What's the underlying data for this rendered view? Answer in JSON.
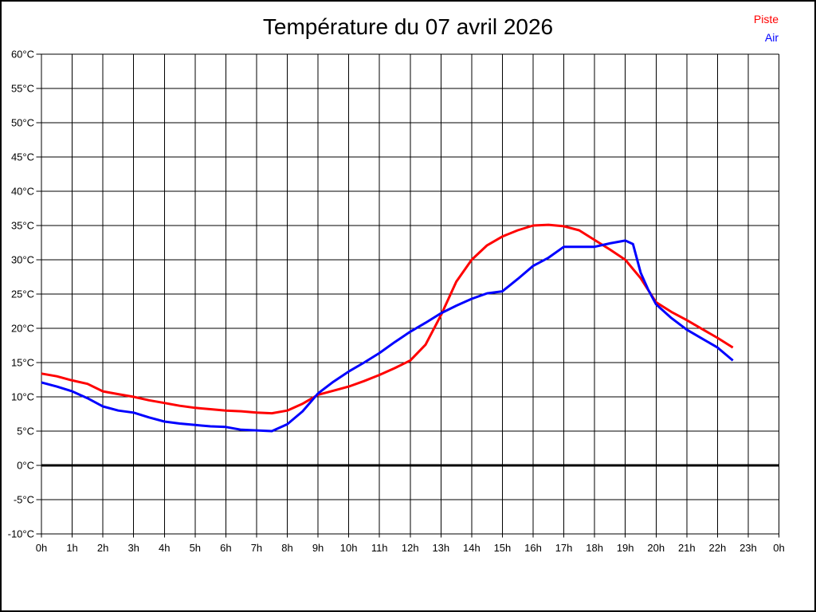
{
  "title": "Température du 07 avril 2026",
  "legend": {
    "piste_label": "Piste",
    "air_label": "Air"
  },
  "colors": {
    "piste": "#ff0000",
    "air": "#0000ff",
    "grid": "#000000",
    "zero_line": "#000000",
    "text": "#000000",
    "background": "#ffffff"
  },
  "chart_data": {
    "type": "line",
    "title": "Température du 07 avril 2026",
    "xlabel": "",
    "ylabel": "",
    "x_unit": "h",
    "y_unit": "°C",
    "xlim": [
      0,
      24
    ],
    "ylim": [
      -10,
      60
    ],
    "x_tick_step": 1,
    "y_tick_step": 5,
    "grid": true,
    "zero_line_emphasized": true,
    "legend_position": "top-right",
    "x_tick_labels": [
      "0h",
      "1h",
      "2h",
      "3h",
      "4h",
      "5h",
      "6h",
      "7h",
      "8h",
      "9h",
      "10h",
      "11h",
      "12h",
      "13h",
      "14h",
      "15h",
      "16h",
      "17h",
      "18h",
      "19h",
      "20h",
      "21h",
      "22h",
      "23h",
      "0h"
    ],
    "y_tick_labels": [
      "60°C",
      "55°C",
      "50°C",
      "45°C",
      "40°C",
      "35°C",
      "30°C",
      "25°C",
      "20°C",
      "15°C",
      "10°C",
      "5°C",
      "0°C",
      "-5°C",
      "-10°C"
    ],
    "series": [
      {
        "name": "Piste",
        "color": "#ff0000",
        "x": [
          0,
          0.5,
          1,
          1.5,
          2,
          2.5,
          3,
          3.5,
          4,
          4.5,
          5,
          5.5,
          6,
          6.5,
          7,
          7.5,
          8,
          8.5,
          9,
          9.5,
          10,
          10.5,
          11,
          11.5,
          12,
          12.5,
          13,
          13.5,
          14,
          14.5,
          15,
          15.5,
          16,
          16.5,
          17,
          17.5,
          18,
          18.5,
          19,
          19.5,
          20,
          20.5,
          21,
          21.5,
          22,
          22.5
        ],
        "values": [
          13.4,
          13.0,
          12.4,
          11.9,
          10.8,
          10.4,
          10.0,
          9.5,
          9.1,
          8.7,
          8.4,
          8.2,
          8.0,
          7.9,
          7.7,
          7.6,
          8.0,
          9.0,
          10.3,
          10.9,
          11.5,
          12.3,
          13.2,
          14.2,
          15.3,
          17.6,
          21.9,
          26.8,
          30.0,
          32.1,
          33.4,
          34.3,
          35.0,
          35.1,
          34.9,
          34.3,
          32.9,
          31.5,
          30.0,
          27.3,
          23.8,
          22.4,
          21.2,
          19.9,
          18.6,
          17.2
        ]
      },
      {
        "name": "Air",
        "color": "#0000ff",
        "x": [
          0,
          0.5,
          1,
          1.5,
          2,
          2.5,
          3,
          3.5,
          4,
          4.5,
          5,
          5.5,
          6,
          6.5,
          7,
          7.5,
          8,
          8.5,
          9,
          9.5,
          10,
          10.5,
          11,
          11.5,
          12,
          12.5,
          13,
          13.5,
          14,
          14.5,
          15,
          15.5,
          16,
          16.5,
          17,
          17.5,
          18,
          18.5,
          19,
          19.25,
          19.5,
          19.75,
          20,
          20.5,
          21,
          21.5,
          22,
          22.5
        ],
        "values": [
          12.1,
          11.5,
          10.8,
          9.8,
          8.6,
          8.0,
          7.7,
          7.0,
          6.4,
          6.1,
          5.9,
          5.7,
          5.6,
          5.2,
          5.1,
          5.0,
          6.0,
          7.9,
          10.5,
          12.2,
          13.7,
          15.0,
          16.4,
          18.0,
          19.5,
          20.8,
          22.2,
          23.3,
          24.3,
          25.1,
          25.4,
          27.2,
          29.1,
          30.3,
          31.9,
          31.9,
          31.9,
          32.4,
          32.8,
          32.3,
          28.1,
          25.6,
          23.5,
          21.5,
          19.8,
          18.5,
          17.2,
          15.3
        ]
      }
    ]
  }
}
